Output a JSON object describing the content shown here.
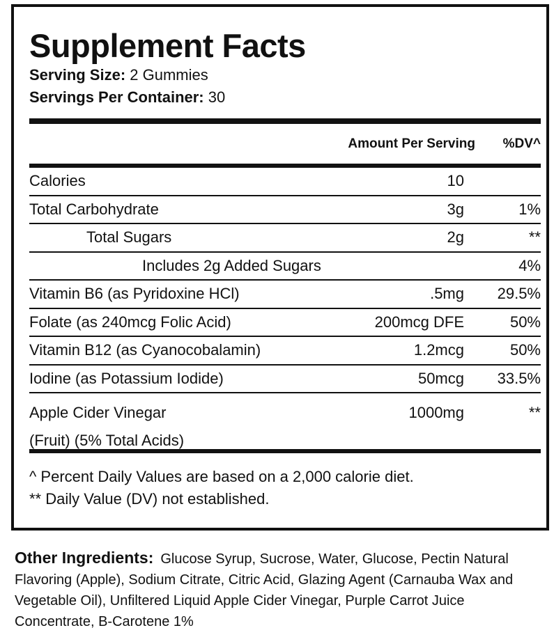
{
  "header": {
    "title": "Supplement Facts",
    "serving_size_label": "Serving Size:",
    "serving_size": "2 Gummies",
    "servings_per_container_label": "Servings Per Container:",
    "servings_per_container": "30"
  },
  "table": {
    "columns": [
      "Amount Per Serving",
      "%DV^"
    ],
    "rows": [
      {
        "name": "Calories",
        "amount": "10"
      },
      {
        "name": "Total Carbohydrate",
        "amount": "3g",
        "dv": "1%"
      },
      {
        "name": "Total Sugars",
        "amount": "2g",
        "dv": "**"
      },
      {
        "name": "Includes 2g Added Sugars",
        "dv": "4%"
      },
      {
        "name": "Vitamin B6 (as Pyridoxine HCl)",
        "amount": ".5mg",
        "dv": "29.5%"
      },
      {
        "name": "Folate (as 240mcg Folic Acid)",
        "amount": "200mcg DFE",
        "dv": "50%"
      },
      {
        "name": "Vitamin B12 (as Cyanocobalamin)",
        "amount": "1.2mcg",
        "dv": "50%"
      },
      {
        "name": "Iodine (as Potassium Iodide)",
        "amount": "50mcg",
        "dv": "33.5%"
      },
      {
        "name": "Apple Cider Vinegar",
        "detail": "(Fruit) (5% Total Acids)",
        "amount": "1000mg",
        "dv": "**"
      }
    ]
  },
  "footnotes": [
    "^ Percent Daily Values are based on a 2,000 calorie diet.",
    "** Daily Value (DV) not established."
  ],
  "other_ingredients": {
    "label": "Other Ingredients:",
    "text": "Glucose Syrup, Sucrose, Water, Glucose, Pectin Natural Flavoring (Apple), Sodium Citrate, Citric Acid, Glazing Agent (Carnauba Wax and Vegetable Oil), Unfiltered Liquid Apple Cider Vinegar, Purple Carrot Juice Concentrate, B-Carotene 1%"
  }
}
